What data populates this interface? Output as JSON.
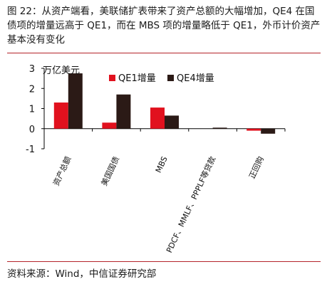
{
  "figure": {
    "caption": "图 22：从资产端看，美联储扩表带来了资产总额的大幅增加，QE4 在国债项的增量远高于 QE1，而在 MBS 项的增量略低于 QE1，外币计价资产基本没有变化",
    "source": "资料来源：Wind，中信证券研究部"
  },
  "colors": {
    "qe1": "#e1111e",
    "qe4": "#2b1a16",
    "rule": "#b4232a"
  },
  "chart_data": {
    "type": "bar",
    "unit_label": "万亿美元",
    "categories": [
      "资产总额",
      "美国国债",
      "MBS",
      "PDCF、MMLF、PPPLF等贷款",
      "正回购"
    ],
    "series": [
      {
        "name": "QE1增量",
        "values": [
          1.3,
          0.3,
          1.05,
          0.0,
          -0.1
        ]
      },
      {
        "name": "QE4增量",
        "values": [
          2.75,
          1.7,
          0.65,
          0.05,
          -0.25
        ]
      }
    ],
    "ylim": [
      -1,
      3
    ],
    "yticks": [
      "-1",
      "0",
      "1",
      "2",
      "3"
    ],
    "grid": false,
    "legend_position": "top-center"
  }
}
